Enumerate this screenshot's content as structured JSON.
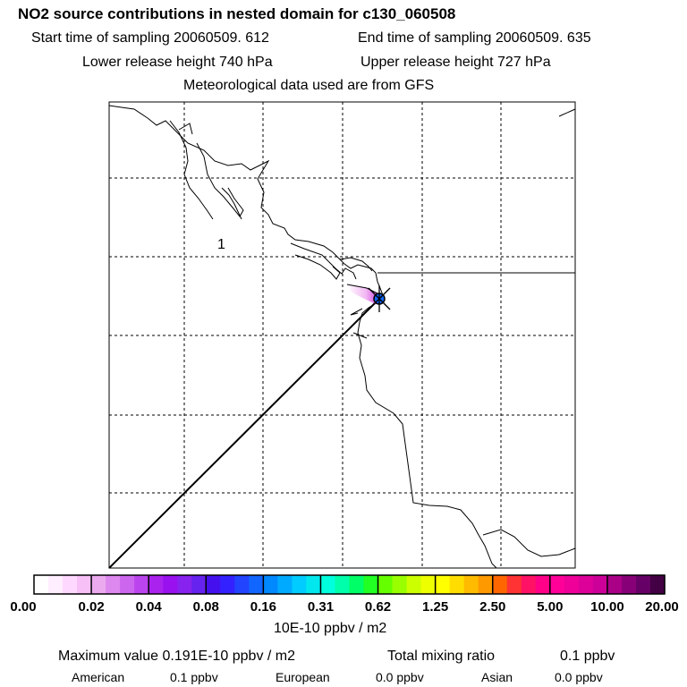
{
  "header": {
    "title": "NO2 source contributions in nested domain for c130_060508",
    "start_time": "Start time of sampling 20060509.   612",
    "end_time": "End time of sampling 20060509.   635",
    "lower_height": "Lower release height  740 hPa",
    "upper_height": "Upper release height  727 hPa",
    "met_data": "Meteorological data used are from GFS"
  },
  "map": {
    "region_label": "1",
    "plume_color": "#cc44dd",
    "source_marker_color": "#1166ff"
  },
  "colorbar": {
    "ticks": [
      "0.00",
      "0.02",
      "0.04",
      "0.08",
      "0.16",
      "0.31",
      "0.62",
      "1.25",
      "2.50",
      "5.00",
      "10.00",
      "20.00"
    ],
    "colors": [
      "#ffffff",
      "#ffeeff",
      "#ffd8ff",
      "#f7c0f7",
      "#ecaaee",
      "#dd88ee",
      "#cc66ee",
      "#bb44ee",
      "#aa22ee",
      "#9911ee",
      "#8822ee",
      "#6622ee",
      "#4411ee",
      "#3322ff",
      "#2244ff",
      "#1166ff",
      "#0088ff",
      "#00aaff",
      "#00ccff",
      "#00e8ee",
      "#00ffdd",
      "#00ffaa",
      "#00ff66",
      "#22ff22",
      "#66ff00",
      "#99ff00",
      "#ccff00",
      "#eeff00",
      "#ffff00",
      "#ffdd00",
      "#ffbb00",
      "#ff9900",
      "#ff6600",
      "#ff3333",
      "#ff1166",
      "#ff0088",
      "#ff0099",
      "#ee0099",
      "#dd0099",
      "#cc0099",
      "#aa0088",
      "#880077",
      "#660066",
      "#440044"
    ],
    "unit": "10E-10 ppbv / m2"
  },
  "stats": {
    "max_value": "Maximum value  0.191E-10 ppbv / m2",
    "total_label": "Total mixing ratio",
    "total_value": "0.1 ppbv",
    "american_label": "American",
    "american_value": "0.1 ppbv",
    "european_label": "European",
    "european_value": "0.0 ppbv",
    "asian_label": "Asian",
    "asian_value": "0.0 ppbv"
  }
}
